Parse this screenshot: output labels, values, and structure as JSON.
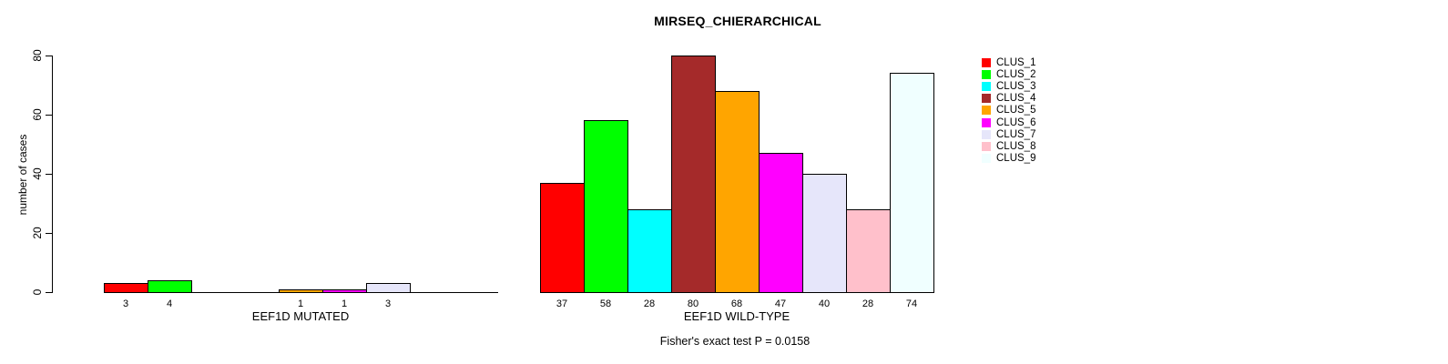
{
  "chart_data": {
    "type": "bar",
    "title": "MIRSEQ_CHIERARCHICAL",
    "ylabel": "number of cases",
    "ylim": [
      0,
      80
    ],
    "yticks": [
      0,
      20,
      40,
      60,
      80
    ],
    "grid": false,
    "legend_position": "right",
    "subtitle": "Fisher's exact test P = 0.0158",
    "series_names": [
      "CLUS_1",
      "CLUS_2",
      "CLUS_3",
      "CLUS_4",
      "CLUS_5",
      "CLUS_6",
      "CLUS_7",
      "CLUS_8",
      "CLUS_9"
    ],
    "series_colors": [
      "#FF0000",
      "#00FF00",
      "#00FFFF",
      "#A52A2A",
      "#FFA500",
      "#FF00FF",
      "#E6E6FA",
      "#FFC0CB",
      "#F0FFFF"
    ],
    "groups": [
      {
        "label": "EEF1D MUTATED",
        "values": [
          3,
          4,
          0,
          0,
          1,
          1,
          3,
          0,
          0
        ]
      },
      {
        "label": "EEF1D WILD-TYPE",
        "values": [
          37,
          58,
          28,
          80,
          68,
          47,
          40,
          28,
          74
        ]
      }
    ]
  },
  "legend": {
    "entries": [
      {
        "label": "CLUS_1",
        "color": "#FF0000"
      },
      {
        "label": "CLUS_2",
        "color": "#00FF00"
      },
      {
        "label": "CLUS_3",
        "color": "#00FFFF"
      },
      {
        "label": "CLUS_4",
        "color": "#A52A2A"
      },
      {
        "label": "CLUS_5",
        "color": "#FFA500"
      },
      {
        "label": "CLUS_6",
        "color": "#FF00FF"
      },
      {
        "label": "CLUS_7",
        "color": "#E6E6FA"
      },
      {
        "label": "CLUS_8",
        "color": "#FFC0CB"
      },
      {
        "label": "CLUS_9",
        "color": "#F0FFFF"
      }
    ]
  }
}
